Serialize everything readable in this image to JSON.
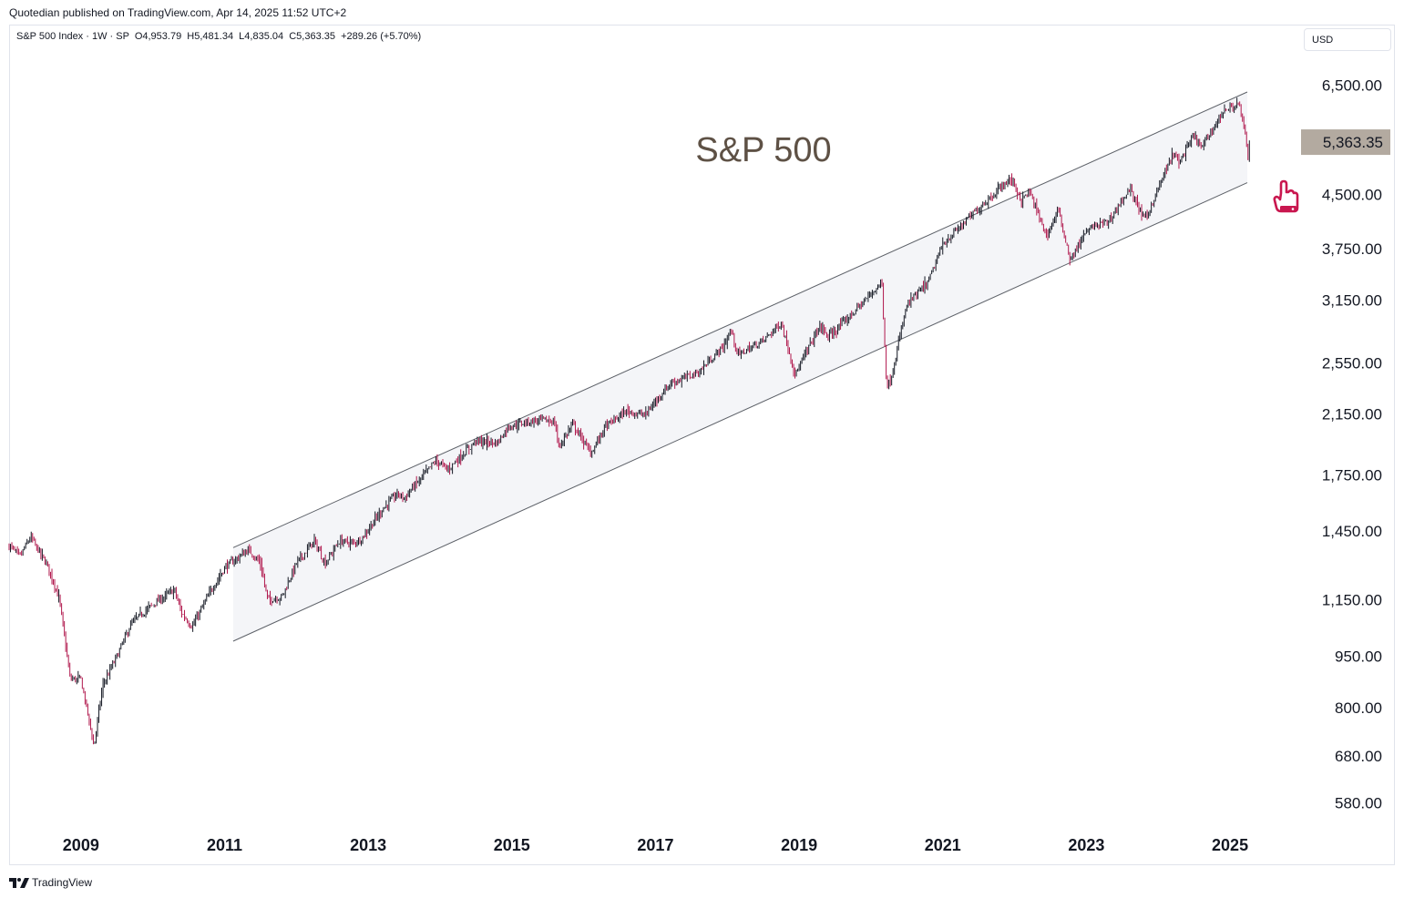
{
  "header": {
    "published": "Quotedian published on TradingView.com, Apr 14, 2025 11:52 UTC+2",
    "legend": "S&P 500 Index · 1W · SP  O4,953.79  H5,481.34  L4,835.04  C5,363.35  +289.26 (+5.70%)"
  },
  "toolbar": {
    "currency": "USD"
  },
  "footer": {
    "brand": "TradingView",
    "logo_icon": "tradingview-logo-icon"
  },
  "colors": {
    "candle_up": "#131722",
    "candle_down": "#b0174c",
    "channel_fill": "#f4f5f8",
    "channel_line": "#5d6168",
    "price_label_bg": "#b3aaa0",
    "title_color": "#5e5145",
    "marker_color": "#c9174f"
  },
  "chart_data": {
    "type": "candlestick",
    "title": "S&P 500",
    "scale": "log",
    "ylim": [
      540,
      7200
    ],
    "xlim": [
      2008.0,
      2025.9
    ],
    "y_ticks": [
      "6,500.00",
      "4,500.00",
      "3,750.00",
      "3,150.00",
      "2,550.00",
      "2,150.00",
      "1,750.00",
      "1,450.00",
      "1,150.00",
      "950.00",
      "800.00",
      "680.00",
      "580.00"
    ],
    "x_ticks": [
      "2009",
      "2011",
      "2013",
      "2015",
      "2017",
      "2019",
      "2021",
      "2023",
      "2025"
    ],
    "last_price": 5363.35,
    "last_price_label": "5,363.35",
    "grid": false,
    "channel": {
      "upper": [
        [
          2011.12,
          1370
        ],
        [
          2025.24,
          6350
        ]
      ],
      "lower": [
        [
          2011.12,
          1000
        ],
        [
          2025.24,
          4680
        ]
      ]
    },
    "anchors": [
      [
        2008.0,
        1380
      ],
      [
        2008.15,
        1330
      ],
      [
        2008.3,
        1420
      ],
      [
        2008.55,
        1280
      ],
      [
        2008.7,
        1150
      ],
      [
        2008.85,
        880
      ],
      [
        2009.0,
        880
      ],
      [
        2009.12,
        760
      ],
      [
        2009.18,
        700
      ],
      [
        2009.3,
        860
      ],
      [
        2009.5,
        950
      ],
      [
        2009.7,
        1060
      ],
      [
        2009.95,
        1120
      ],
      [
        2010.3,
        1190
      ],
      [
        2010.4,
        1100
      ],
      [
        2010.55,
        1050
      ],
      [
        2010.8,
        1180
      ],
      [
        2011.0,
        1280
      ],
      [
        2011.33,
        1360
      ],
      [
        2011.5,
        1300
      ],
      [
        2011.6,
        1150
      ],
      [
        2011.8,
        1160
      ],
      [
        2012.0,
        1300
      ],
      [
        2012.25,
        1400
      ],
      [
        2012.4,
        1300
      ],
      [
        2012.6,
        1400
      ],
      [
        2012.8,
        1390
      ],
      [
        2012.9,
        1410
      ],
      [
        2013.2,
        1560
      ],
      [
        2013.4,
        1640
      ],
      [
        2013.5,
        1620
      ],
      [
        2013.95,
        1840
      ],
      [
        2014.1,
        1780
      ],
      [
        2014.5,
        1960
      ],
      [
        2014.8,
        1950
      ],
      [
        2014.95,
        2060
      ],
      [
        2015.4,
        2110
      ],
      [
        2015.6,
        2090
      ],
      [
        2015.65,
        1920
      ],
      [
        2015.85,
        2080
      ],
      [
        2016.1,
        1880
      ],
      [
        2016.3,
        2060
      ],
      [
        2016.6,
        2170
      ],
      [
        2016.85,
        2140
      ],
      [
        2017.2,
        2380
      ],
      [
        2017.6,
        2470
      ],
      [
        2017.95,
        2700
      ],
      [
        2018.05,
        2850
      ],
      [
        2018.15,
        2620
      ],
      [
        2018.5,
        2750
      ],
      [
        2018.75,
        2920
      ],
      [
        2018.95,
        2450
      ],
      [
        2019.1,
        2650
      ],
      [
        2019.3,
        2900
      ],
      [
        2019.4,
        2780
      ],
      [
        2019.7,
        2980
      ],
      [
        2020.1,
        3300
      ],
      [
        2020.15,
        3380
      ],
      [
        2020.22,
        2350
      ],
      [
        2020.27,
        2400
      ],
      [
        2020.5,
        3100
      ],
      [
        2020.8,
        3350
      ],
      [
        2021.0,
        3800
      ],
      [
        2021.5,
        4300
      ],
      [
        2021.95,
        4750
      ],
      [
        2022.1,
        4400
      ],
      [
        2022.2,
        4550
      ],
      [
        2022.45,
        3900
      ],
      [
        2022.6,
        4280
      ],
      [
        2022.78,
        3600
      ],
      [
        2022.95,
        3900
      ],
      [
        2023.1,
        4050
      ],
      [
        2023.3,
        4100
      ],
      [
        2023.6,
        4580
      ],
      [
        2023.8,
        4150
      ],
      [
        2023.85,
        4200
      ],
      [
        2024.2,
        5150
      ],
      [
        2024.3,
        5020
      ],
      [
        2024.5,
        5500
      ],
      [
        2024.6,
        5250
      ],
      [
        2024.9,
        5950
      ],
      [
        2025.12,
        6100
      ],
      [
        2025.18,
        5750
      ],
      [
        2025.22,
        5400
      ],
      [
        2025.255,
        5000
      ],
      [
        2025.27,
        5363
      ]
    ]
  }
}
